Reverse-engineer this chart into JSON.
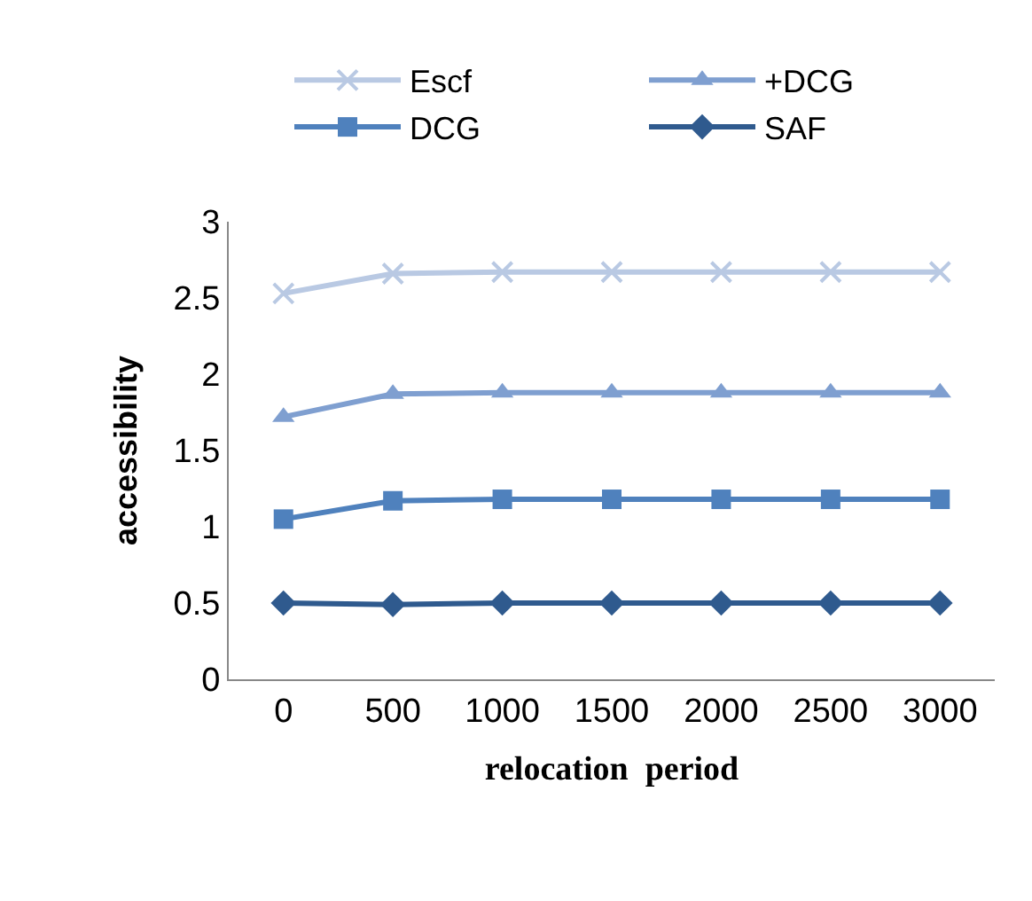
{
  "chart_data": {
    "type": "line",
    "categories": [
      "0",
      "500",
      "1000",
      "1500",
      "2000",
      "2500",
      "3000"
    ],
    "xlabel": "relocation  period",
    "ylabel": "accessibility",
    "ylim": [
      0,
      3
    ],
    "yticks": [
      0,
      0.5,
      1,
      1.5,
      2,
      2.5,
      3
    ],
    "legend": "top right",
    "series": [
      {
        "name": "Escf",
        "color": "#b9c9e3",
        "marker": "cross",
        "values": [
          2.53,
          2.66,
          2.67,
          2.67,
          2.67,
          2.67,
          2.67
        ]
      },
      {
        "name": "+DCG",
        "color": "#7f9fd0",
        "marker": "triangle",
        "values": [
          1.72,
          1.87,
          1.88,
          1.88,
          1.88,
          1.88,
          1.88
        ]
      },
      {
        "name": "DCG",
        "color": "#4f81bd",
        "marker": "square",
        "values": [
          1.05,
          1.17,
          1.18,
          1.18,
          1.18,
          1.18,
          1.18
        ]
      },
      {
        "name": "SAF",
        "color": "#2f5a8e",
        "marker": "diamond",
        "values": [
          0.5,
          0.49,
          0.5,
          0.5,
          0.5,
          0.5,
          0.5
        ]
      }
    ]
  }
}
